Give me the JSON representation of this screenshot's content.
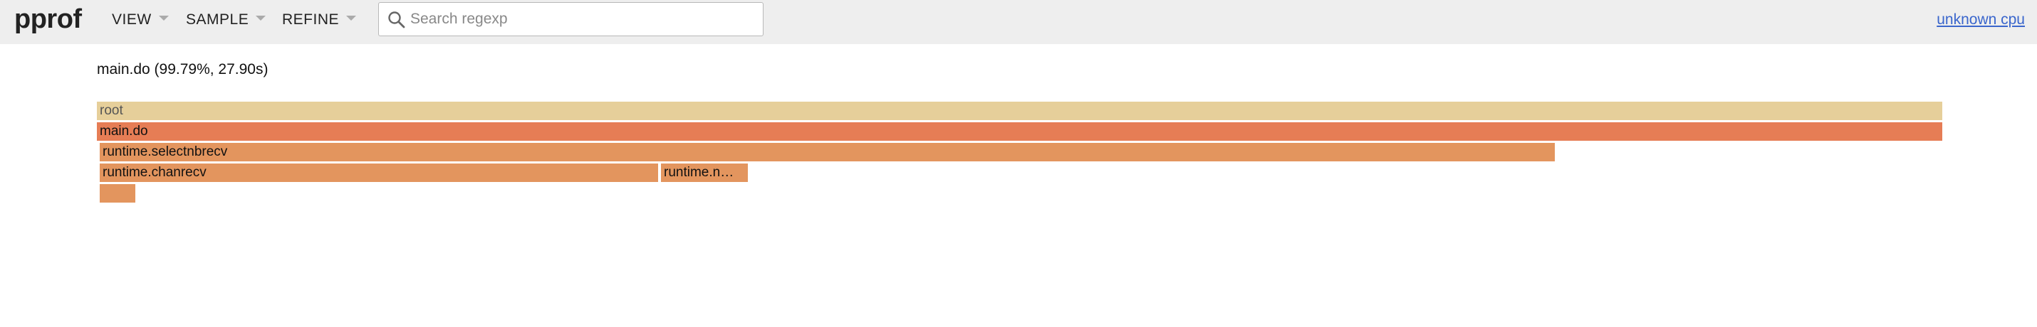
{
  "header": {
    "brand": "pprof",
    "menus": [
      {
        "label": "VIEW"
      },
      {
        "label": "SAMPLE"
      },
      {
        "label": "REFINE"
      }
    ],
    "search": {
      "placeholder": "Search regexp",
      "value": "",
      "icon": "search-icon"
    },
    "profile_link": "unknown cpu"
  },
  "details": "main.do (99.79%, 27.90s)",
  "flamegraph": {
    "colors": {
      "root": "#e6cf9a",
      "main_do": "#e67d55",
      "child": "#e3955e"
    },
    "frames": [
      {
        "label": "root"
      },
      {
        "label": "main.do"
      },
      {
        "label": "runtime.selectnbrecv"
      },
      {
        "label": "runtime.chanrecv"
      },
      {
        "label": "runtime.n…"
      },
      {
        "label": ""
      }
    ]
  }
}
